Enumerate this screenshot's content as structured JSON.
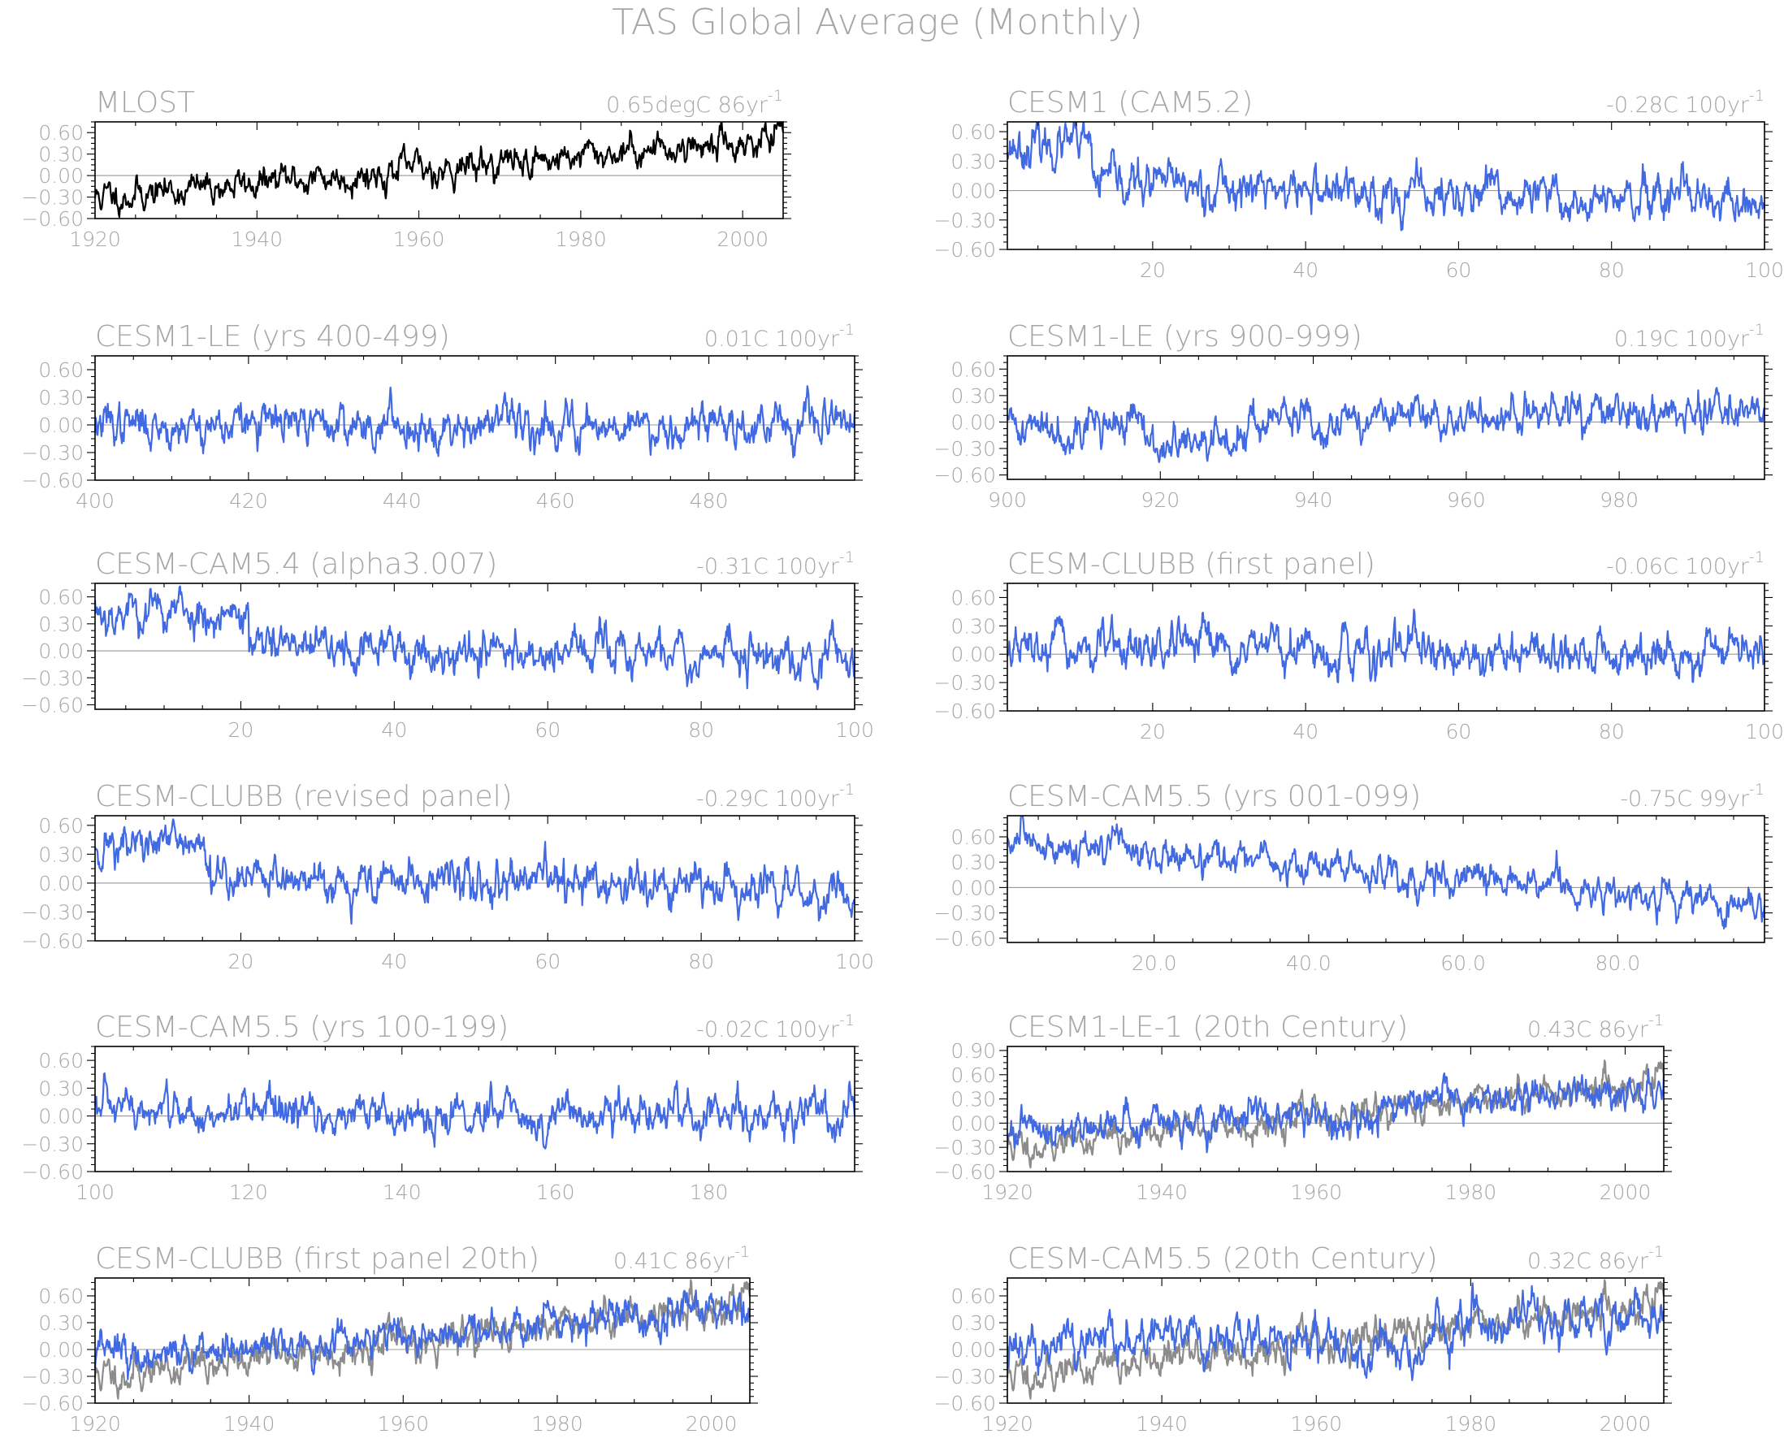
{
  "figure": {
    "title": "TAS Global Average (Monthly)",
    "line_colors": {
      "model": "#4169e1",
      "observed": "#000000",
      "observed_overlay": "#8c8c8c"
    }
  },
  "chart_data": [
    {
      "type": "line",
      "id": "p1",
      "title": "MLOST",
      "trend": "0.65degC 86yr",
      "trend_sup": "-1",
      "xlim": [
        1920,
        2005
      ],
      "ylim": [
        -0.6,
        0.75
      ],
      "xticks": [
        1920,
        1940,
        1960,
        1980,
        2000
      ],
      "xtick_labels": [
        "1920",
        "1940",
        "1960",
        "1980",
        "2000"
      ],
      "yticks": [
        -0.6,
        -0.3,
        0.0,
        0.3,
        0.6
      ],
      "ytick_labels": [
        "-0.60",
        "-0.30",
        "0.00",
        "0.30",
        "0.60"
      ],
      "series": [
        {
          "role": "observed",
          "start": -0.3,
          "end": 0.52,
          "noise": 0.12,
          "seed": 11
        }
      ]
    },
    {
      "type": "line",
      "id": "p2",
      "title": "CESM1 (CAM5.2)",
      "trend": "-0.28C 100yr",
      "trend_sup": "-1",
      "xlim": [
        1,
        100
      ],
      "ylim": [
        -0.6,
        0.7
      ],
      "xticks": [
        20,
        40,
        60,
        80,
        100
      ],
      "xtick_labels": [
        "20",
        "40",
        "60",
        "80",
        "100"
      ],
      "yticks": [
        -0.6,
        -0.3,
        0.0,
        0.3,
        0.6
      ],
      "ytick_labels": [
        "-0.60",
        "-0.30",
        "0.00",
        "0.30",
        "0.60"
      ],
      "series": [
        {
          "role": "model",
          "start": 0.12,
          "end": -0.18,
          "noise": 0.12,
          "seed": 23,
          "bump": [
            1,
            12,
            0.35
          ]
        }
      ]
    },
    {
      "type": "line",
      "id": "p3",
      "title": "CESM1-LE (yrs 400-499)",
      "trend": "0.01C 100yr",
      "trend_sup": "-1",
      "xlim": [
        400,
        499
      ],
      "ylim": [
        -0.6,
        0.75
      ],
      "xticks": [
        400,
        420,
        440,
        460,
        480
      ],
      "xtick_labels": [
        "400",
        "420",
        "440",
        "460",
        "480"
      ],
      "yticks": [
        -0.6,
        -0.3,
        0.0,
        0.3,
        0.6
      ],
      "ytick_labels": [
        "-0.60",
        "-0.30",
        "0.00",
        "0.30",
        "0.60"
      ],
      "series": [
        {
          "role": "model",
          "start": 0.0,
          "end": 0.02,
          "noise": 0.12,
          "seed": 37
        }
      ]
    },
    {
      "type": "line",
      "id": "p4",
      "title": "CESM1-LE (yrs 900-999)",
      "trend": "0.19C 100yr",
      "trend_sup": "-1",
      "xlim": [
        900,
        999
      ],
      "ylim": [
        -0.65,
        0.75
      ],
      "xticks": [
        900,
        920,
        940,
        960,
        980
      ],
      "xtick_labels": [
        "900",
        "920",
        "940",
        "960",
        "980"
      ],
      "yticks": [
        -0.6,
        -0.3,
        0.0,
        0.3,
        0.6
      ],
      "ytick_labels": [
        "-0.60",
        "-0.30",
        "0.00",
        "0.30",
        "0.60"
      ],
      "series": [
        {
          "role": "model",
          "start": -0.05,
          "end": 0.12,
          "noise": 0.12,
          "seed": 41,
          "bump": [
            918,
            930,
            -0.25
          ]
        }
      ]
    },
    {
      "type": "line",
      "id": "p5",
      "title": "CESM-CAM5.4 (alpha3.007)",
      "trend": "-0.31C 100yr",
      "trend_sup": "-1",
      "xlim": [
        1,
        100
      ],
      "ylim": [
        -0.65,
        0.75
      ],
      "xticks": [
        20,
        40,
        60,
        80,
        100
      ],
      "xtick_labels": [
        "20",
        "40",
        "60",
        "80",
        "100"
      ],
      "yticks": [
        -0.6,
        -0.3,
        0.0,
        0.3,
        0.6
      ],
      "ytick_labels": [
        "-0.60",
        "-0.30",
        "0.00",
        "0.30",
        "0.60"
      ],
      "series": [
        {
          "role": "model",
          "start": 0.05,
          "end": -0.05,
          "noise": 0.13,
          "seed": 53,
          "bump": [
            1,
            21,
            0.4
          ]
        }
      ]
    },
    {
      "type": "line",
      "id": "p6",
      "title": "CESM-CLUBB (first panel)",
      "trend": "-0.06C 100yr",
      "trend_sup": "-1",
      "xlim": [
        1,
        100
      ],
      "ylim": [
        -0.6,
        0.75
      ],
      "xticks": [
        20,
        40,
        60,
        80,
        100
      ],
      "xtick_labels": [
        "20",
        "40",
        "60",
        "80",
        "100"
      ],
      "yticks": [
        -0.6,
        -0.3,
        0.0,
        0.3,
        0.6
      ],
      "ytick_labels": [
        "-0.60",
        "-0.30",
        "0.00",
        "0.30",
        "0.60"
      ],
      "series": [
        {
          "role": "model",
          "start": 0.05,
          "end": -0.01,
          "noise": 0.12,
          "seed": 67
        }
      ]
    },
    {
      "type": "line",
      "id": "p7",
      "title": "CESM-CLUBB (revised panel)",
      "trend": "-0.29C 100yr",
      "trend_sup": "-1",
      "xlim": [
        1,
        100
      ],
      "ylim": [
        -0.6,
        0.7
      ],
      "xticks": [
        20,
        40,
        60,
        80,
        100
      ],
      "xtick_labels": [
        "20",
        "40",
        "60",
        "80",
        "100"
      ],
      "yticks": [
        -0.6,
        -0.3,
        0.0,
        0.3,
        0.6
      ],
      "ytick_labels": [
        "-0.60",
        "-0.30",
        "0.00",
        "0.30",
        "0.60"
      ],
      "series": [
        {
          "role": "model",
          "start": 0.1,
          "end": -0.1,
          "noise": 0.12,
          "seed": 71,
          "bump": [
            1,
            16,
            0.3
          ]
        }
      ]
    },
    {
      "type": "line",
      "id": "p8",
      "title": "CESM-CAM5.5 (yrs 001-099)",
      "trend": "-0.75C 99yr",
      "trend_sup": "-1",
      "xlim": [
        1,
        99
      ],
      "ylim": [
        -0.65,
        0.85
      ],
      "xticks": [
        20,
        40,
        60,
        80
      ],
      "xtick_labels": [
        "20.0",
        "40.0",
        "60.0",
        "80.0"
      ],
      "yticks": [
        -0.6,
        -0.3,
        0.0,
        0.3,
        0.6
      ],
      "ytick_labels": [
        "-0.60",
        "-0.30",
        "0.00",
        "0.30",
        "0.60"
      ],
      "series": [
        {
          "role": "model",
          "start": 0.55,
          "end": -0.2,
          "noise": 0.11,
          "seed": 83
        }
      ]
    },
    {
      "type": "line",
      "id": "p9",
      "title": "CESM-CAM5.5 (yrs 100-199)",
      "trend": "-0.02C 100yr",
      "trend_sup": "-1",
      "xlim": [
        100,
        199
      ],
      "ylim": [
        -0.6,
        0.75
      ],
      "xticks": [
        100,
        120,
        140,
        160,
        180
      ],
      "xtick_labels": [
        "100",
        "120",
        "140",
        "160",
        "180"
      ],
      "yticks": [
        -0.6,
        -0.3,
        0.0,
        0.3,
        0.6
      ],
      "ytick_labels": [
        "-0.60",
        "-0.30",
        "0.00",
        "0.30",
        "0.60"
      ],
      "series": [
        {
          "role": "model",
          "start": 0.03,
          "end": 0.01,
          "noise": 0.12,
          "seed": 97
        }
      ]
    },
    {
      "type": "line",
      "id": "p10",
      "title": "CESM1-LE-1 (20th Century)",
      "trend": "0.43C 86yr",
      "trend_sup": "-1",
      "xlim": [
        1920,
        2005
      ],
      "ylim": [
        -0.6,
        0.95
      ],
      "xticks": [
        1920,
        1940,
        1960,
        1980,
        2000
      ],
      "xtick_labels": [
        "1920",
        "1940",
        "1960",
        "1980",
        "2000"
      ],
      "yticks": [
        -0.6,
        -0.3,
        0.0,
        0.3,
        0.6,
        0.9
      ],
      "ytick_labels": [
        "-0.60",
        "-0.30",
        "0.00",
        "0.30",
        "0.60",
        "0.90"
      ],
      "series": [
        {
          "role": "observed_overlay",
          "start": -0.3,
          "end": 0.52,
          "noise": 0.11,
          "seed": 11
        },
        {
          "role": "model",
          "start": -0.12,
          "end": 0.45,
          "noise": 0.12,
          "seed": 101,
          "bump": [
            1962,
            1968,
            -0.2
          ]
        }
      ]
    },
    {
      "type": "line",
      "id": "p11",
      "title": "CESM-CLUBB (first panel 20th)",
      "trend": "0.41C 86yr",
      "trend_sup": "-1",
      "xlim": [
        1920,
        2005
      ],
      "ylim": [
        -0.6,
        0.8
      ],
      "xticks": [
        1920,
        1940,
        1960,
        1980,
        2000
      ],
      "xtick_labels": [
        "1920",
        "1940",
        "1960",
        "1980",
        "2000"
      ],
      "yticks": [
        -0.6,
        -0.3,
        0.0,
        0.3,
        0.6
      ],
      "ytick_labels": [
        "-0.60",
        "-0.30",
        "0.00",
        "0.30",
        "0.60"
      ],
      "series": [
        {
          "role": "observed_overlay",
          "start": -0.3,
          "end": 0.52,
          "noise": 0.11,
          "seed": 11
        },
        {
          "role": "model",
          "start": -0.1,
          "end": 0.45,
          "noise": 0.11,
          "seed": 113
        }
      ]
    },
    {
      "type": "line",
      "id": "p12",
      "title": "CESM-CAM5.5 (20th Century)",
      "trend": "0.32C 86yr",
      "trend_sup": "-1",
      "xlim": [
        1920,
        2005
      ],
      "ylim": [
        -0.6,
        0.8
      ],
      "xticks": [
        1920,
        1940,
        1960,
        1980,
        2000
      ],
      "xtick_labels": [
        "1920",
        "1940",
        "1960",
        "1980",
        "2000"
      ],
      "yticks": [
        -0.6,
        -0.3,
        0.0,
        0.3,
        0.6
      ],
      "ytick_labels": [
        "-0.60",
        "-0.30",
        "0.00",
        "0.30",
        "0.60"
      ],
      "series": [
        {
          "role": "observed_overlay",
          "start": -0.3,
          "end": 0.52,
          "noise": 0.11,
          "seed": 11
        },
        {
          "role": "model",
          "start": 0.0,
          "end": 0.4,
          "noise": 0.13,
          "seed": 127,
          "bump": [
            1962,
            1975,
            -0.2
          ]
        }
      ]
    }
  ]
}
